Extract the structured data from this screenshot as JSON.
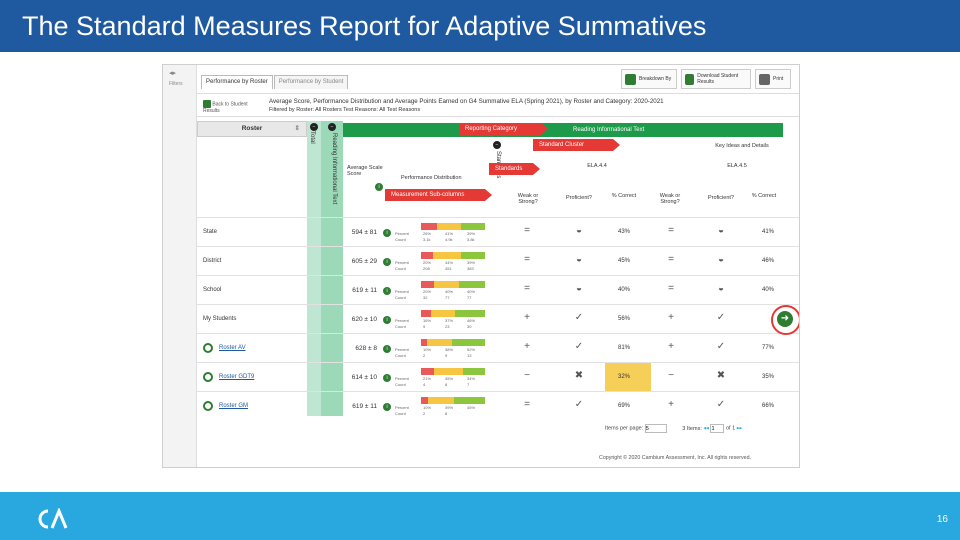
{
  "slide": {
    "title": "The Standard Measures Report for Adaptive Summatives",
    "page_number": "16"
  },
  "app": {
    "filters_label": "Filters",
    "tabs": [
      {
        "label": "Performance by Roster"
      },
      {
        "label": "Performance by Student"
      }
    ],
    "toolbar": {
      "breakdown": "Breakdown By",
      "download": "Download Student Results",
      "print": "Print"
    },
    "back_to_results": "Back to Student Results",
    "header_title": "Average Score, Performance Distribution and Average Points Earned on G4 Summative ELA (Spring 2021), by Roster and Category: 2020-2021",
    "header_filter": "Filtered by Roster: All Rosters   Test Reasons: All Test Reasons",
    "columns": {
      "roster": "Roster",
      "total": "Total",
      "reading_info_text_vertical": "Reading Informational Text",
      "standards_vertical": "Standards",
      "reporting_category": "Reading Informational Text",
      "cluster": "Key Ideas and Details",
      "avg_score": "Average Scale Score",
      "perf_dist": "Performance Distribution",
      "std1": "ELA.4.4",
      "std2": "ELA.4.5",
      "weak_strong": "Weak or Strong?",
      "proficient": "Proficient?",
      "pct_correct": "% Correct"
    },
    "callouts": {
      "reporting_category": "Reporting Category",
      "standard_cluster": "Standard Cluster",
      "standards": "Standards",
      "measurement": "Measurement Sub-columns"
    },
    "dist_labels": {
      "percent": "Percent",
      "count": "Count"
    },
    "rows": [
      {
        "name": "State",
        "score": "594 ± 81",
        "link": false,
        "percent": [
          "26%",
          "41%",
          "39%"
        ],
        "count": [
          "3.1k",
          "4.9k",
          "3.8k"
        ],
        "ws1": "=",
        "prof1": "◒",
        "pct1": "43%",
        "ws2": "=",
        "prof2": "◒",
        "pct2": "41%"
      },
      {
        "name": "District",
        "score": "605 ± 29",
        "link": false,
        "percent": [
          "20%",
          "44%",
          "39%"
        ],
        "count": [
          "208",
          "451",
          "383"
        ],
        "ws1": "=",
        "prof1": "◒",
        "pct1": "45%",
        "ws2": "=",
        "prof2": "◒",
        "pct2": "46%"
      },
      {
        "name": "School",
        "score": "619 ± 11",
        "link": false,
        "percent": [
          "20%",
          "40%",
          "40%"
        ],
        "count": [
          "32",
          "77",
          "77"
        ],
        "ws1": "=",
        "prof1": "◒",
        "pct1": "40%",
        "ws2": "=",
        "prof2": "◒",
        "pct2": "40%"
      },
      {
        "name": "My Students",
        "score": "620 ± 10",
        "link": false,
        "percent": [
          "16%",
          "37%",
          "46%"
        ],
        "count": [
          "9",
          "23",
          "30"
        ],
        "ws1": "+",
        "prof1": "✓",
        "pct1": "56%",
        "ws2": "+",
        "prof2": "✓",
        "pct2": ""
      },
      {
        "name": "Roster AV",
        "score": "628 ± 8",
        "link": true,
        "percent": [
          "10%",
          "38%",
          "52%"
        ],
        "count": [
          "2",
          "9",
          "13"
        ],
        "ws1": "+",
        "prof1": "✓",
        "pct1": "81%",
        "ws2": "+",
        "prof2": "✓",
        "pct2": "77%"
      },
      {
        "name": "Roster GDT9",
        "score": "614 ± 10",
        "link": true,
        "percent": [
          "21%",
          "45%",
          "34%"
        ],
        "count": [
          "4",
          "8",
          "7"
        ],
        "ws1": "−",
        "prof1": "✖",
        "pct1": "32%",
        "ws2": "−",
        "prof2": "✖",
        "pct2": "35%"
      },
      {
        "name": "Roster GM",
        "score": "619 ± 11",
        "link": true,
        "percent": [
          "10%",
          "39%",
          "45%"
        ],
        "count": [
          "2",
          "8",
          ""
        ],
        "ws1": "=",
        "prof1": "✓",
        "pct1": "69%",
        "ws2": "+",
        "prof2": "✓",
        "pct2": "66%"
      }
    ],
    "pager": {
      "items_per_page_label": "Items per page:",
      "items_per_page": "5",
      "items_count": "3 Items:",
      "page": "1",
      "of": "of 1"
    },
    "copyright": "Copyright © 2020 Cambium Assessment, Inc. All rights reserved."
  },
  "colors": {
    "title_bg": "#1f5aa0",
    "footer_bg": "#29a8e0",
    "green_bar": "#1e9b4a",
    "callout_red": "#e53935",
    "highlight_yellow": "#f6cf58"
  }
}
